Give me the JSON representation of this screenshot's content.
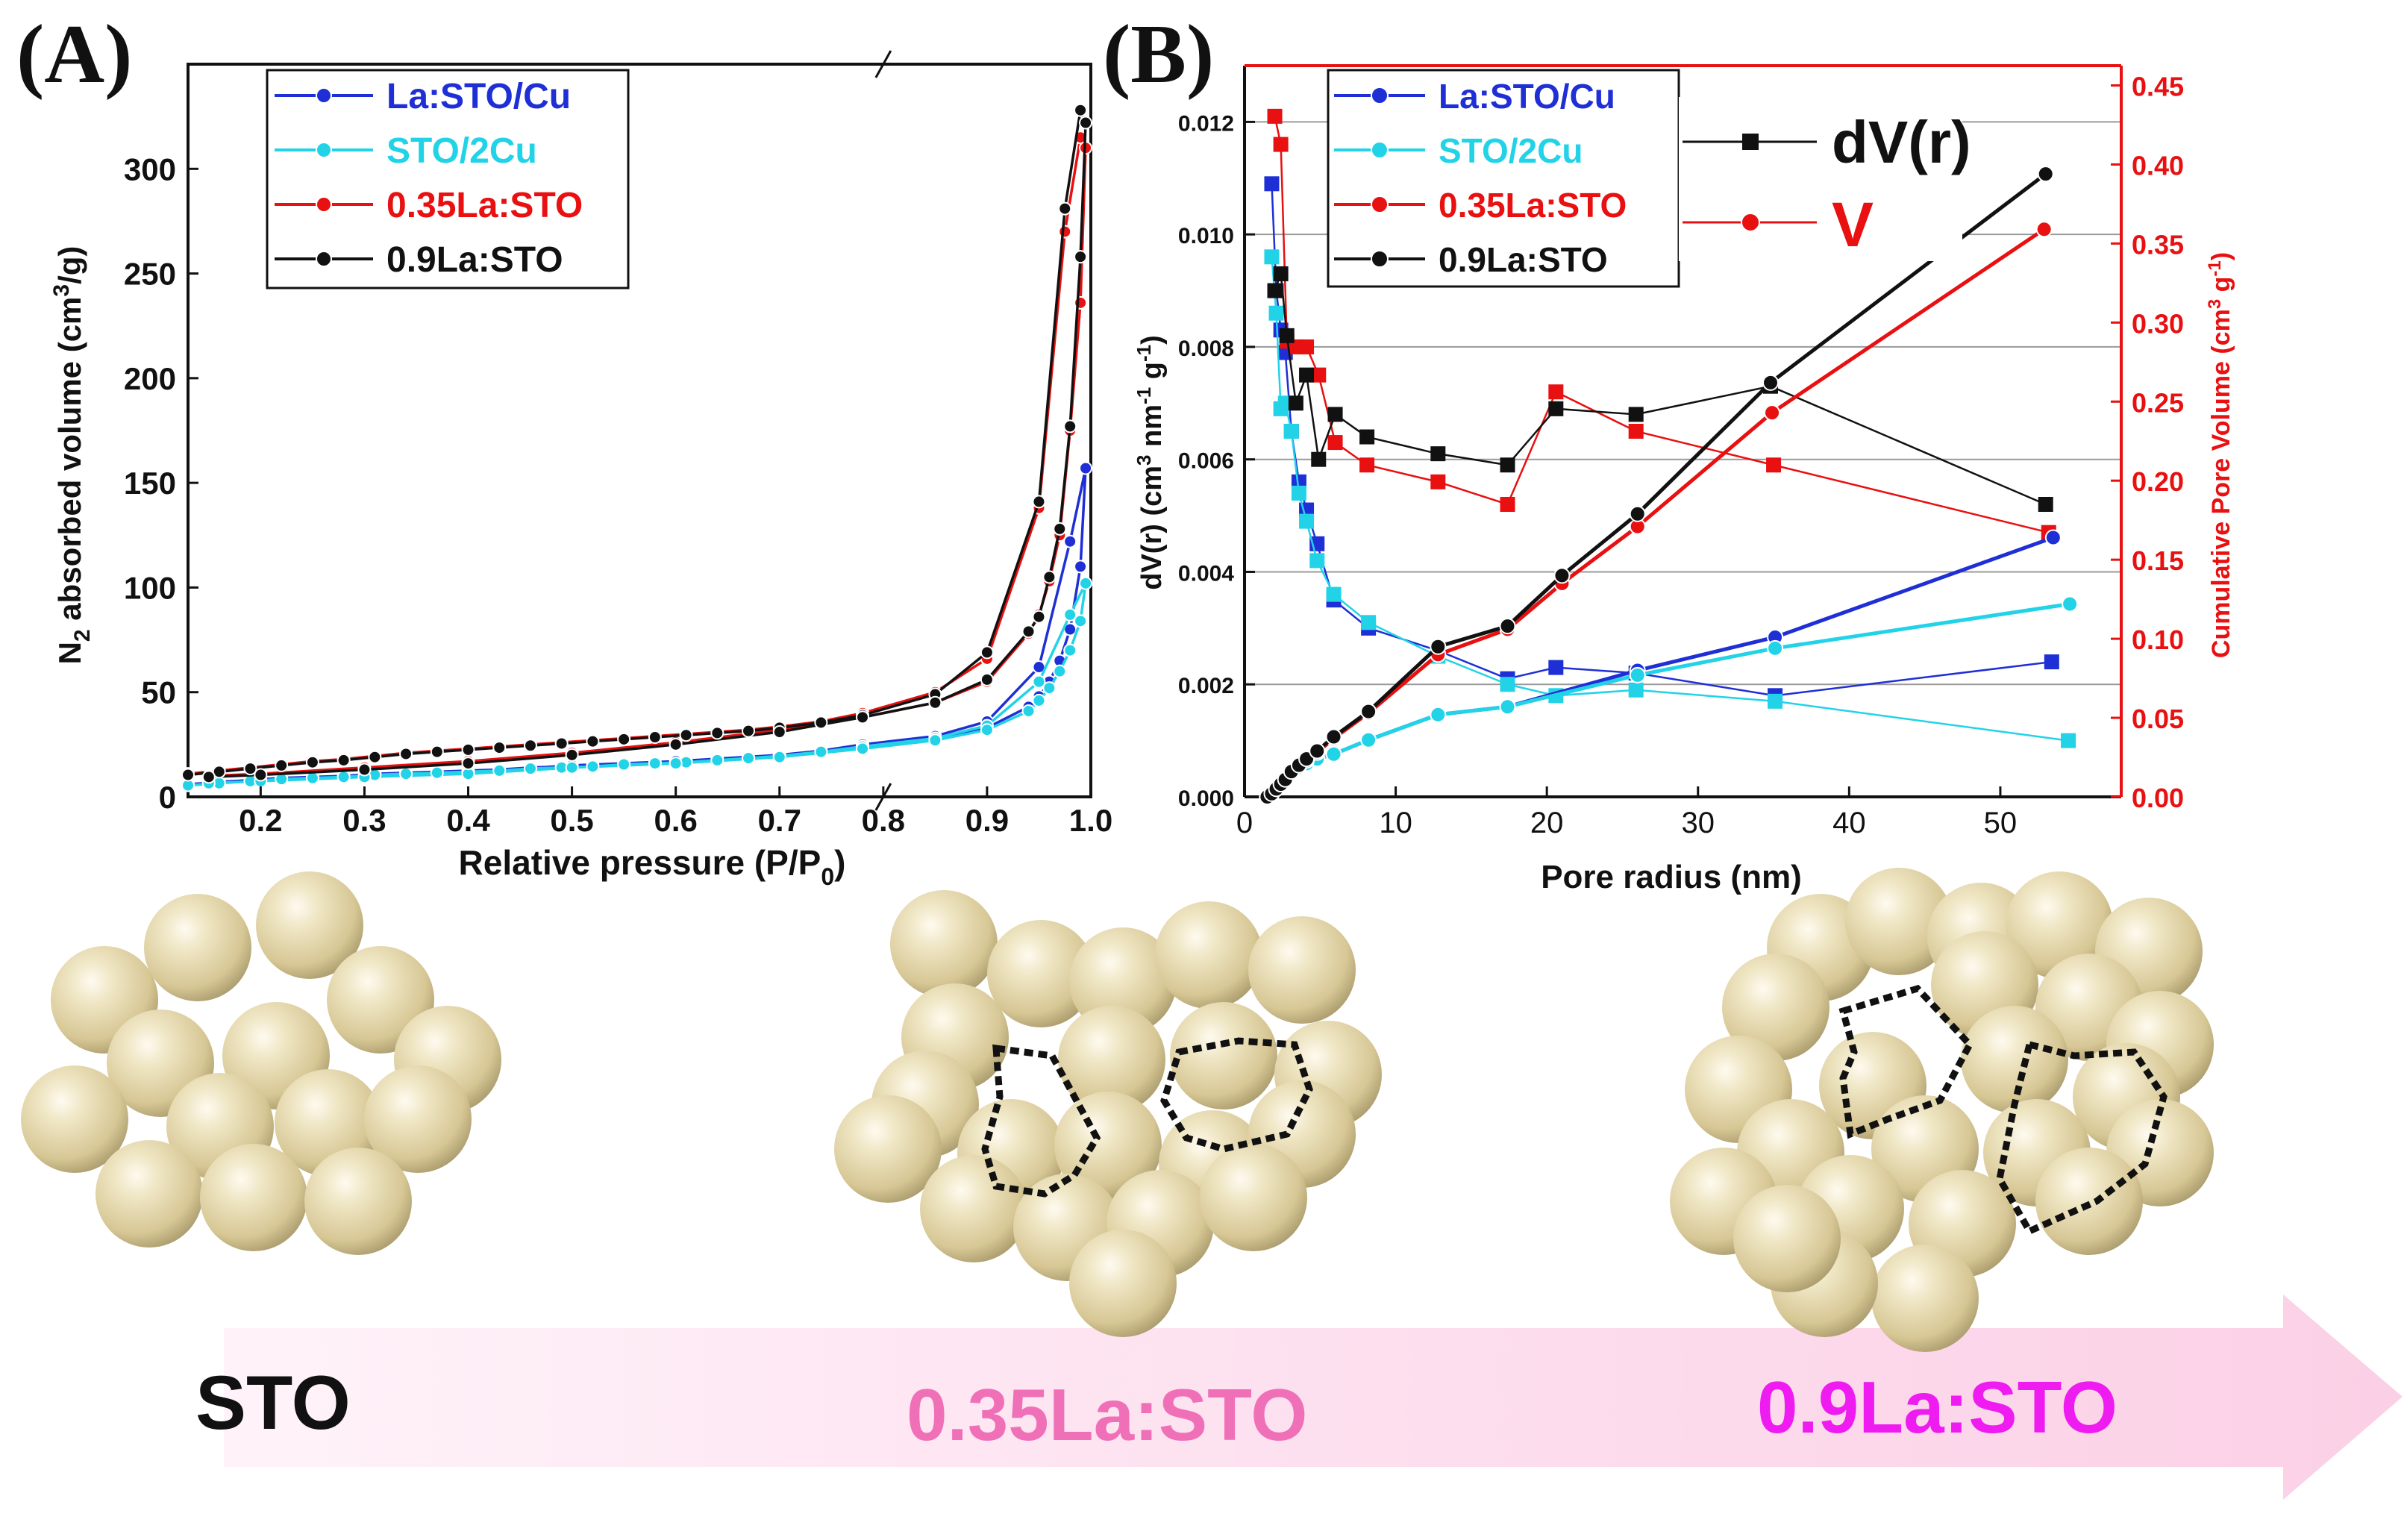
{
  "colors": {
    "la_sto_cu": "#1f2fd6",
    "sto_2cu": "#22d3e8",
    "la035_sto": "#e81010",
    "la09_sto": "#111111",
    "right_axis": "#e81010",
    "sphere": "#e8dcb0",
    "arrow": "#fdd3ea",
    "label_mid": "#f070b8",
    "label_end": "#ee1cf0"
  },
  "chart_data": [
    {
      "id": "A",
      "type": "line",
      "panel_label": "(A)",
      "title": "",
      "xlabel": "Relative pressure (P/P",
      "xlabel_sub": "0",
      "xlabel_end": ")",
      "ylabel_pre": "N",
      "ylabel_sub": "2",
      "ylabel_mid": " absorbed volume (cm",
      "ylabel_sup": "3",
      "ylabel_end": "/g)",
      "xlim": [
        0.13,
        1.0
      ],
      "ylim": [
        0,
        350
      ],
      "xticks": [
        0.2,
        0.3,
        0.4,
        0.5,
        0.6,
        0.7,
        0.8,
        0.9,
        1.0
      ],
      "xtick_labels": [
        "0.2",
        "0.3",
        "0.4",
        "0.5",
        "0.6",
        "0.7",
        "0.8",
        "0.9",
        "1.0"
      ],
      "axis_break_at": 0.8,
      "yticks": [
        0,
        50,
        100,
        150,
        200,
        250,
        300
      ],
      "ytick_labels": [
        "0",
        "50",
        "100",
        "150",
        "200",
        "250",
        "300"
      ],
      "legend": [
        "La:STO/Cu",
        "STO/2Cu",
        "0.35La:STO",
        "0.9La:STO"
      ],
      "series": [
        {
          "name": "La:STO/Cu",
          "color_key": "la_sto_cu",
          "x": [
            0.13,
            0.16,
            0.19,
            0.22,
            0.25,
            0.28,
            0.31,
            0.34,
            0.37,
            0.4,
            0.43,
            0.46,
            0.49,
            0.52,
            0.55,
            0.58,
            0.61,
            0.64,
            0.67,
            0.7,
            0.74,
            0.78,
            0.85,
            0.9,
            0.95,
            0.98,
            0.995,
            0.99,
            0.98,
            0.97,
            0.96,
            0.95,
            0.94,
            0.9,
            0.85,
            0.78,
            0.7,
            0.6,
            0.5,
            0.4,
            0.3,
            0.2,
            0.15
          ],
          "y": [
            6,
            7,
            8,
            9,
            9.5,
            10,
            11,
            11.5,
            12,
            12.5,
            13,
            14,
            14.5,
            15,
            16,
            16.5,
            17,
            18,
            19,
            20,
            22,
            25,
            29,
            36,
            62,
            122,
            157,
            110,
            80,
            65,
            55,
            48,
            43,
            33,
            28,
            24,
            20,
            17,
            15,
            12,
            10,
            8,
            7
          ]
        },
        {
          "name": "STO/2Cu",
          "color_key": "sto_2cu",
          "x": [
            0.13,
            0.16,
            0.19,
            0.22,
            0.25,
            0.28,
            0.31,
            0.34,
            0.37,
            0.4,
            0.43,
            0.46,
            0.49,
            0.52,
            0.55,
            0.58,
            0.61,
            0.64,
            0.67,
            0.7,
            0.74,
            0.78,
            0.85,
            0.9,
            0.95,
            0.98,
            0.995,
            0.99,
            0.98,
            0.97,
            0.96,
            0.95,
            0.94,
            0.9,
            0.85,
            0.78,
            0.7,
            0.6,
            0.5,
            0.4,
            0.3,
            0.2,
            0.15
          ],
          "y": [
            5.5,
            6.5,
            7.5,
            8.5,
            9,
            9.5,
            10.5,
            11,
            11.5,
            12,
            12.5,
            13.5,
            14,
            14.5,
            15.5,
            16,
            16.5,
            17.5,
            18.5,
            19.5,
            21.5,
            24,
            28,
            34,
            55,
            87,
            102,
            84,
            70,
            60,
            52,
            46,
            41,
            32,
            27,
            23,
            19,
            16,
            14,
            11,
            9.5,
            7.5,
            6.5
          ]
        },
        {
          "name": "0.35La:STO",
          "color_key": "la035_sto",
          "x": [
            0.13,
            0.16,
            0.19,
            0.22,
            0.25,
            0.28,
            0.31,
            0.34,
            0.37,
            0.4,
            0.43,
            0.46,
            0.49,
            0.52,
            0.55,
            0.58,
            0.61,
            0.64,
            0.67,
            0.7,
            0.74,
            0.78,
            0.85,
            0.9,
            0.95,
            0.975,
            0.99,
            0.995,
            0.99,
            0.98,
            0.97,
            0.96,
            0.95,
            0.94,
            0.9,
            0.85,
            0.78,
            0.7,
            0.6,
            0.5,
            0.4,
            0.3,
            0.2,
            0.15
          ],
          "y": [
            11,
            12.5,
            14,
            15.5,
            17,
            18,
            19.5,
            21,
            22,
            23,
            24,
            25,
            26,
            27,
            28,
            29,
            30,
            31,
            32,
            33.5,
            36,
            40,
            50,
            66,
            138,
            270,
            315,
            310,
            236,
            175,
            125,
            103,
            87,
            78,
            55,
            45,
            38,
            32,
            26,
            21,
            17,
            14,
            11,
            10
          ]
        },
        {
          "name": "0.9La:STO",
          "color_key": "la09_sto",
          "x": [
            0.13,
            0.16,
            0.19,
            0.22,
            0.25,
            0.28,
            0.31,
            0.34,
            0.37,
            0.4,
            0.43,
            0.46,
            0.49,
            0.52,
            0.55,
            0.58,
            0.61,
            0.64,
            0.67,
            0.7,
            0.74,
            0.78,
            0.85,
            0.9,
            0.95,
            0.975,
            0.99,
            0.995,
            0.99,
            0.98,
            0.97,
            0.96,
            0.95,
            0.94,
            0.9,
            0.85,
            0.78,
            0.7,
            0.6,
            0.5,
            0.4,
            0.3,
            0.2,
            0.15
          ],
          "y": [
            10.5,
            12,
            13.5,
            15,
            16.5,
            17.5,
            19,
            20.5,
            21.5,
            22.5,
            23.5,
            24.5,
            25.5,
            26.5,
            27.5,
            28.5,
            29.5,
            30.5,
            31.5,
            33,
            35.5,
            39,
            49,
            69,
            141,
            281,
            328,
            322,
            258,
            177,
            128,
            105,
            86,
            79,
            56,
            45,
            38,
            31,
            25,
            20,
            16,
            13,
            10.5,
            9.5
          ]
        }
      ]
    },
    {
      "id": "B",
      "type": "line",
      "panel_label": "(B)",
      "title": "",
      "xlabel": "Pore radius (nm)",
      "ylabel_left": "dV(r) (cm",
      "ylabel_left_sup1": "3",
      "ylabel_left_mid": " nm",
      "ylabel_left_sup2": "-1",
      "ylabel_left_mid2": " g",
      "ylabel_left_sup3": "-1",
      "ylabel_left_end": ")",
      "ylabel_right": "Cumulative Pore Volume (cm",
      "ylabel_right_sup": "3",
      "ylabel_right_mid": " g",
      "ylabel_right_sup2": "-1",
      "ylabel_right_end": ")",
      "xlim": [
        0,
        58
      ],
      "ylim_left": [
        0,
        0.013
      ],
      "ylim_right": [
        0,
        0.4625
      ],
      "xticks": [
        0,
        10,
        20,
        30,
        40,
        50
      ],
      "xtick_labels": [
        "0",
        "10",
        "20",
        "30",
        "40",
        "50"
      ],
      "yticks_left": [
        0,
        0.002,
        0.004,
        0.006,
        0.008,
        0.01,
        0.012
      ],
      "ytick_labels_left": [
        "0.000",
        "0.002",
        "0.004",
        "0.006",
        "0.008",
        "0.010",
        "0.012"
      ],
      "yticks_right": [
        0,
        0.05,
        0.1,
        0.15,
        0.2,
        0.25,
        0.3,
        0.35,
        0.4,
        0.45
      ],
      "ytick_labels_right": [
        "0.00",
        "0.05",
        "0.10",
        "0.15",
        "0.20",
        "0.25",
        "0.30",
        "0.35",
        "0.40",
        "0.45"
      ],
      "gridlines_left": [
        0.002,
        0.004,
        0.006,
        0.008,
        0.01,
        0.012
      ],
      "legend": [
        "La:STO/Cu",
        "STO/2Cu",
        "0.35La:STO",
        "0.9La:STO"
      ],
      "legend_type": [
        "dV(r)",
        "V"
      ],
      "series_dv": [
        {
          "name": "La:STO/Cu",
          "color_key": "la_sto_cu",
          "x": [
            1.8,
            2.1,
            2.4,
            2.7,
            3.1,
            3.6,
            4.1,
            4.8,
            5.9,
            8.2,
            12.8,
            17.4,
            20.6,
            25.9,
            35.1,
            53.4
          ],
          "y": [
            0.0109,
            0.009,
            0.0083,
            0.0079,
            0.0065,
            0.0056,
            0.0051,
            0.0045,
            0.0035,
            0.003,
            0.0026,
            0.0021,
            0.0023,
            0.0022,
            0.0018,
            0.0024
          ]
        },
        {
          "name": "STO/2Cu",
          "color_key": "sto_2cu",
          "x": [
            1.8,
            2.1,
            2.4,
            2.7,
            3.1,
            3.6,
            4.1,
            4.8,
            5.9,
            8.2,
            12.8,
            17.4,
            20.6,
            25.9,
            35.1,
            54.5
          ],
          "y": [
            0.0096,
            0.0086,
            0.0069,
            0.007,
            0.0065,
            0.0054,
            0.0049,
            0.0042,
            0.0036,
            0.0031,
            0.0025,
            0.002,
            0.0018,
            0.0019,
            0.0017,
            0.001
          ]
        },
        {
          "name": "0.35La:STO",
          "color_key": "la035_sto",
          "x": [
            2.0,
            2.4,
            2.8,
            3.4,
            4.1,
            4.9,
            6.0,
            8.1,
            12.8,
            17.4,
            20.6,
            25.9,
            35.0,
            53.2
          ],
          "y": [
            0.0121,
            0.0116,
            0.0081,
            0.008,
            0.008,
            0.0075,
            0.0063,
            0.0059,
            0.0056,
            0.0052,
            0.0072,
            0.0065,
            0.0059,
            0.0047
          ]
        },
        {
          "name": "0.9La:STO",
          "color_key": "la09_sto",
          "x": [
            2.0,
            2.4,
            2.8,
            3.4,
            4.1,
            4.9,
            6.0,
            8.1,
            12.8,
            17.4,
            20.6,
            25.9,
            34.8,
            53.0
          ],
          "y": [
            0.009,
            0.0093,
            0.0082,
            0.007,
            0.0075,
            0.006,
            0.0068,
            0.0064,
            0.0061,
            0.0059,
            0.0069,
            0.0068,
            0.0073,
            0.0052
          ]
        }
      ],
      "series_v": [
        {
          "name": "La:STO/Cu",
          "color_key": "la_sto_cu",
          "x": [
            1.5,
            1.8,
            2.1,
            2.4,
            2.7,
            3.1,
            3.6,
            4.1,
            4.8,
            5.9,
            8.2,
            12.8,
            17.4,
            26.0,
            35.1,
            53.5
          ],
          "y": [
            0.0,
            0.002,
            0.005,
            0.008,
            0.011,
            0.015,
            0.018,
            0.021,
            0.024,
            0.027,
            0.036,
            0.052,
            0.057,
            0.08,
            0.101,
            0.164
          ]
        },
        {
          "name": "STO/2Cu",
          "color_key": "sto_2cu",
          "x": [
            1.5,
            1.8,
            2.1,
            2.4,
            2.7,
            3.1,
            3.6,
            4.1,
            4.8,
            5.9,
            8.2,
            12.8,
            17.4,
            26.0,
            35.1,
            54.6
          ],
          "y": [
            0.0,
            0.002,
            0.005,
            0.008,
            0.011,
            0.015,
            0.018,
            0.021,
            0.024,
            0.027,
            0.036,
            0.052,
            0.057,
            0.077,
            0.094,
            0.122
          ]
        },
        {
          "name": "0.35La:STO",
          "color_key": "la035_sto",
          "x": [
            1.5,
            1.8,
            2.1,
            2.4,
            2.7,
            3.1,
            3.6,
            4.1,
            4.8,
            5.9,
            8.2,
            12.8,
            17.4,
            21.0,
            26.0,
            34.9,
            52.9
          ],
          "y": [
            0.0,
            0.002,
            0.005,
            0.008,
            0.011,
            0.015,
            0.019,
            0.023,
            0.028,
            0.037,
            0.053,
            0.09,
            0.106,
            0.135,
            0.171,
            0.243,
            0.359
          ]
        },
        {
          "name": "0.9La:STO",
          "color_key": "la09_sto",
          "x": [
            1.5,
            1.8,
            2.1,
            2.4,
            2.7,
            3.1,
            3.6,
            4.1,
            4.8,
            5.9,
            8.2,
            12.8,
            17.4,
            21.0,
            26.0,
            34.8,
            53.0
          ],
          "y": [
            0.0,
            0.002,
            0.005,
            0.008,
            0.011,
            0.016,
            0.02,
            0.024,
            0.029,
            0.038,
            0.054,
            0.095,
            0.108,
            0.14,
            0.179,
            0.262,
            0.394
          ]
        }
      ]
    }
  ],
  "illustration": {
    "labels": [
      "STO",
      "0.35La:STO",
      "0.9La:STO"
    ]
  }
}
